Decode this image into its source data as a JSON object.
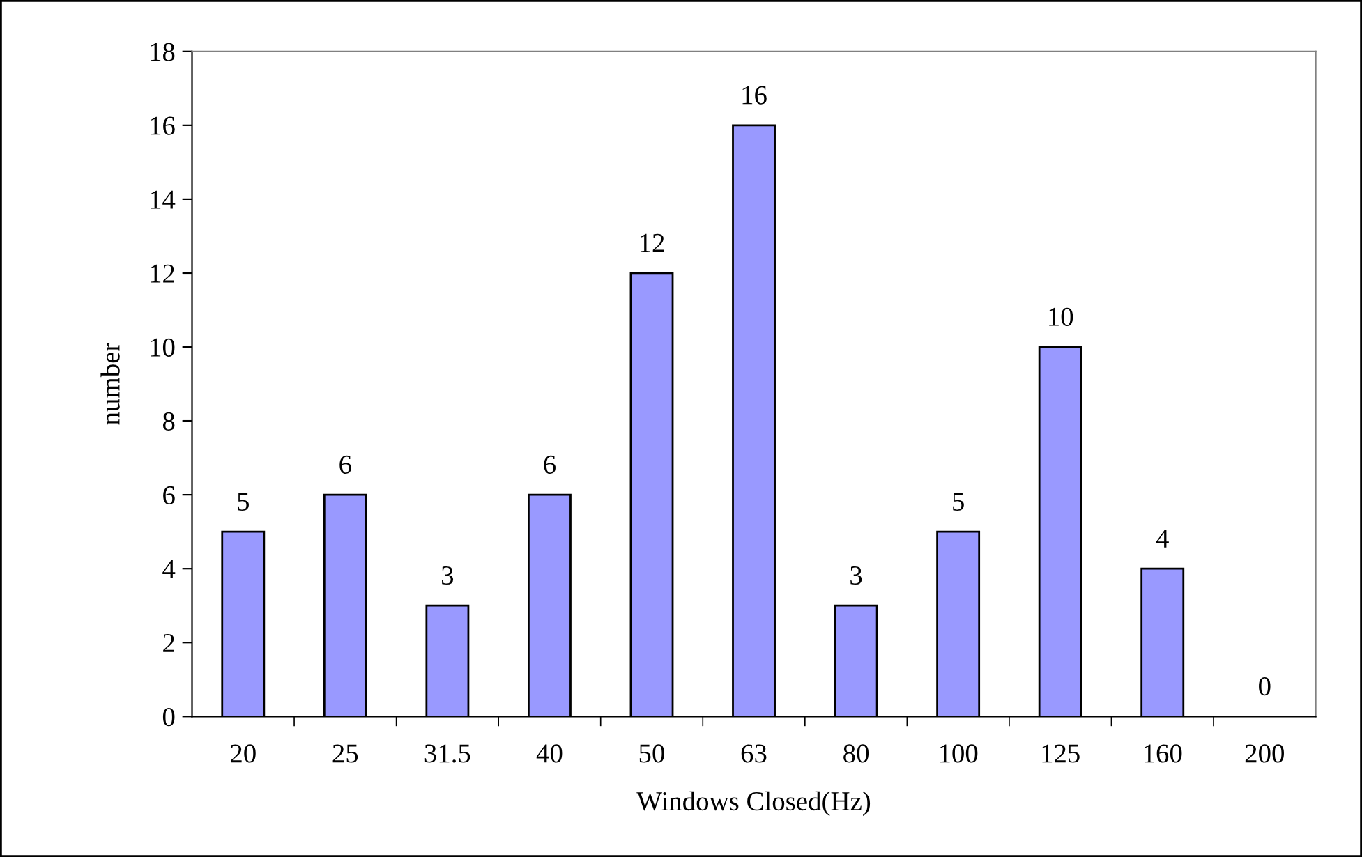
{
  "chart_data": {
    "type": "bar",
    "xlabel": "Windows Closed(Hz)",
    "ylabel": "number",
    "categories": [
      "20",
      "25",
      "31.5",
      "40",
      "50",
      "63",
      "80",
      "100",
      "125",
      "160",
      "200"
    ],
    "values": [
      5,
      6,
      3,
      6,
      12,
      16,
      3,
      5,
      10,
      4,
      0
    ],
    "color": "#9999ff",
    "ylim": [
      0,
      18
    ],
    "yticks": [
      0,
      2,
      4,
      6,
      8,
      10,
      12,
      14,
      16,
      18
    ],
    "data_labels": true
  }
}
